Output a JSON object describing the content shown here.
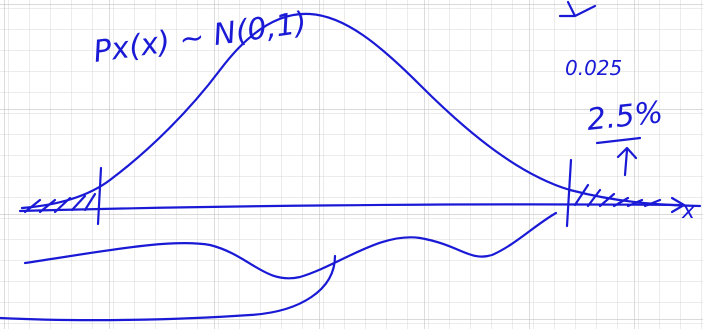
{
  "annotations": {
    "distribution": "Px(x) ~ N(0,1)",
    "tail_value": "0.025",
    "tail_percent": "2.5%",
    "axis_label": "x"
  }
}
